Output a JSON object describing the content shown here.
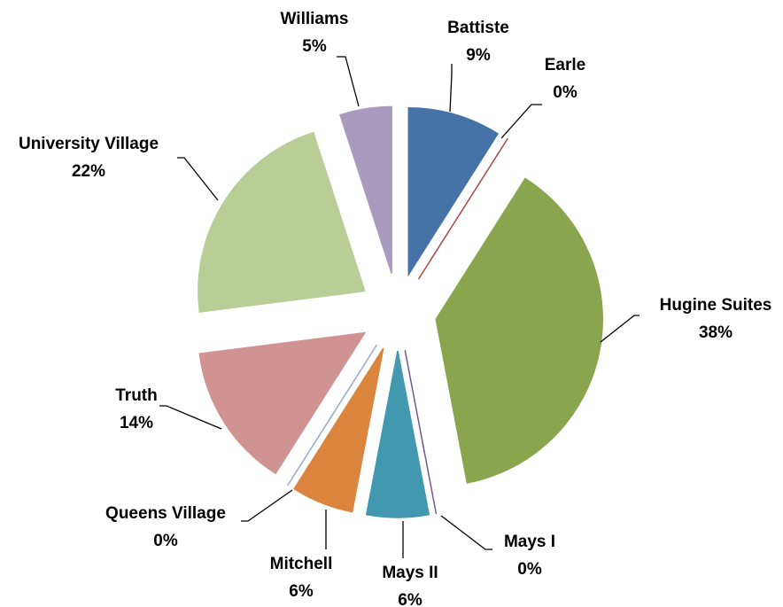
{
  "chart_data": {
    "type": "pie",
    "categories": [
      "Battiste",
      "Earle",
      "Hugine Suites",
      "Mays I",
      "Mays II",
      "Mitchell",
      "Queens Village",
      "Truth",
      "University Village",
      "Williams"
    ],
    "values": [
      9,
      0,
      38,
      0,
      6,
      6,
      0,
      14,
      22,
      5
    ],
    "value_labels": [
      "9%",
      "0%",
      "38%",
      "0%",
      "6%",
      "6%",
      "0%",
      "14%",
      "22%",
      "5%"
    ],
    "colors": [
      "#4572a7",
      "#aa4643",
      "#89a54e",
      "#71588f",
      "#4198af",
      "#db843d",
      "#93a9cf",
      "#d19392",
      "#b9cd96",
      "#a99bbd"
    ]
  }
}
